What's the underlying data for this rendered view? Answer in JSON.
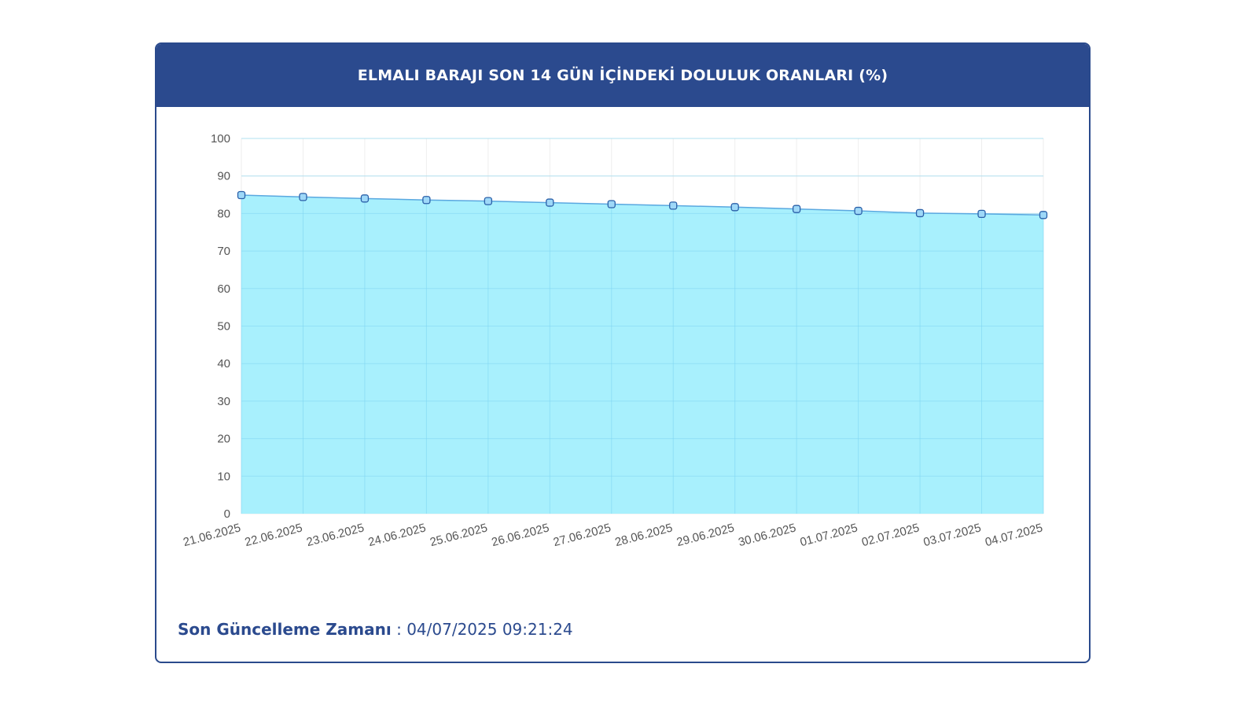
{
  "title": "ELMALI BARAJI SON 14 GÜN İÇİNDEKİ DOLULUK ORANLARI (%)",
  "footer": {
    "label": "Son Güncelleme Zamanı",
    "separator": " : ",
    "value": "04/07/2025 09:21:24"
  },
  "colors": {
    "header_bg": "#2b4a8e",
    "area_fill": "#a8f0fd",
    "line": "#5aa8e0",
    "marker_fill": "#9ed8f8",
    "marker_stroke": "#2a5fa8"
  },
  "chart_data": {
    "type": "area",
    "x": [
      "21.06.2025",
      "22.06.2025",
      "23.06.2025",
      "24.06.2025",
      "25.06.2025",
      "26.06.2025",
      "27.06.2025",
      "28.06.2025",
      "29.06.2025",
      "30.06.2025",
      "01.07.2025",
      "02.07.2025",
      "03.07.2025",
      "04.07.2025"
    ],
    "series": [
      {
        "values": [
          84.9,
          84.4,
          84.0,
          83.6,
          83.3,
          82.9,
          82.5,
          82.1,
          81.7,
          81.2,
          80.7,
          80.1,
          79.9,
          79.6
        ]
      }
    ],
    "ylim": [
      0,
      100
    ],
    "yticks": [
      0,
      10,
      20,
      30,
      40,
      50,
      60,
      70,
      80,
      90,
      100
    ],
    "grid": true,
    "legend": "none"
  }
}
